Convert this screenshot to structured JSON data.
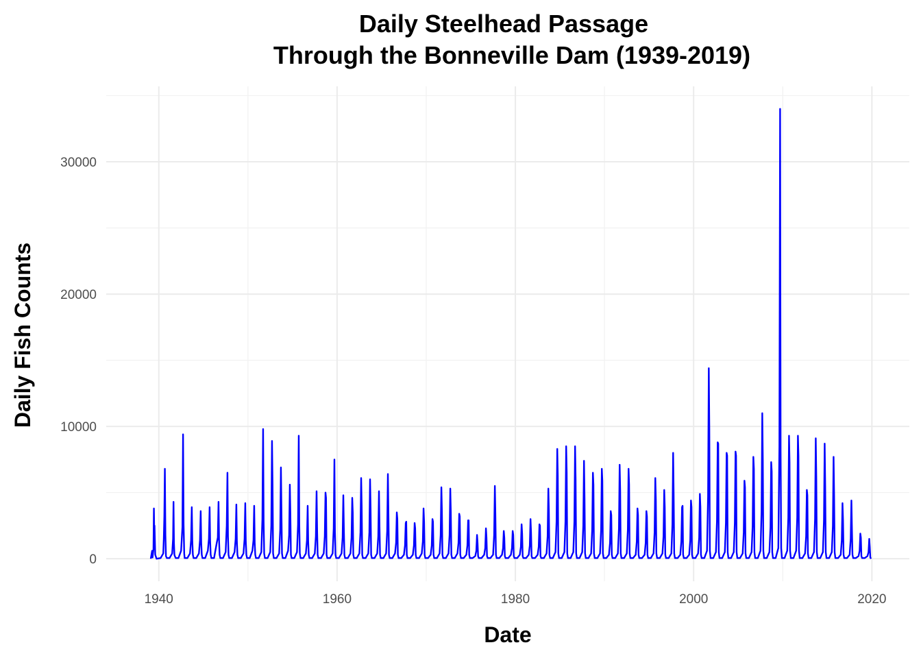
{
  "chart_data": {
    "type": "line",
    "title_line1": "Daily Steelhead Passage",
    "title_line2": "Through the Bonneville Dam (1939-2019)",
    "xlabel": "Date",
    "ylabel": "Daily Fish Counts",
    "xlim": [
      1934.1,
      2024.2
    ],
    "ylim": [
      -1700,
      35700
    ],
    "x_ticks": [
      "1940",
      "1960",
      "1980",
      "2000",
      "2020"
    ],
    "x_tick_values": [
      1940,
      1960,
      1980,
      2000,
      2020
    ],
    "y_ticks": [
      "0",
      "10000",
      "20000",
      "30000"
    ],
    "y_tick_values": [
      0,
      10000,
      20000,
      30000
    ],
    "grid": true,
    "line_color": "#0000ff",
    "series": [
      {
        "x": [
          1939.1,
          1939.25,
          1939.3,
          1939.4,
          1939.45,
          1939.5,
          1939.52,
          1939.6,
          1939.7,
          1939.75,
          1940.2,
          1940.5,
          1940.56,
          1940.62,
          1940.68,
          1940.74,
          1940.8,
          1940.9,
          1941.2,
          1941.5,
          1941.6,
          1941.65,
          1941.7,
          1941.75,
          1941.8,
          1941.9,
          1942.2,
          1942.5,
          1942.65,
          1942.72,
          1942.78,
          1942.85,
          1942.9,
          1943.2,
          1943.5,
          1943.62,
          1943.7,
          1943.76,
          1943.82,
          1943.9,
          1944.2,
          1944.5,
          1944.62,
          1944.7,
          1944.76,
          1944.82,
          1944.9,
          1945.2,
          1945.5,
          1945.62,
          1945.7,
          1945.76,
          1945.82,
          1945.9,
          1946.2,
          1946.5,
          1946.62,
          1946.7,
          1946.76,
          1946.82,
          1946.9,
          1947.2,
          1947.5,
          1947.62,
          1947.7,
          1947.76,
          1947.82,
          1947.9,
          1948.2,
          1948.5,
          1948.62,
          1948.7,
          1948.76,
          1948.82,
          1948.9,
          1949.2,
          1949.5,
          1949.62,
          1949.7,
          1949.76,
          1949.82,
          1949.9,
          1950.2,
          1950.5,
          1950.62,
          1950.7,
          1950.76,
          1950.82,
          1950.9,
          1951.2,
          1951.5,
          1951.62,
          1951.7,
          1951.76,
          1951.82,
          1951.9,
          1952.2,
          1952.5,
          1952.62,
          1952.7,
          1952.76,
          1952.82,
          1952.9,
          1953.2,
          1953.5,
          1953.62,
          1953.7,
          1953.76,
          1953.82,
          1953.9,
          1954.2,
          1954.5,
          1954.62,
          1954.7,
          1954.76,
          1954.82,
          1954.9,
          1955.2,
          1955.5,
          1955.62,
          1955.7,
          1955.76,
          1955.82,
          1955.9,
          1956.2,
          1956.5,
          1956.62,
          1956.7,
          1956.76,
          1956.82,
          1956.9,
          1957.2,
          1957.5,
          1957.62,
          1957.7,
          1957.76,
          1957.82,
          1957.9,
          1958.2,
          1958.5,
          1958.62,
          1958.7,
          1958.76,
          1958.82,
          1958.9,
          1959.2,
          1959.5,
          1959.62,
          1959.7,
          1959.76,
          1959.82,
          1959.9,
          1960.2,
          1960.5,
          1960.62,
          1960.7,
          1960.76,
          1960.82,
          1960.9,
          1961.2,
          1961.5,
          1961.62,
          1961.7,
          1961.76,
          1961.82,
          1961.9,
          1962.2,
          1962.5,
          1962.62,
          1962.7,
          1962.76,
          1962.82,
          1962.9,
          1963.2,
          1963.5,
          1963.62,
          1963.7,
          1963.76,
          1963.82,
          1963.9,
          1964.2,
          1964.5,
          1964.62,
          1964.7,
          1964.76,
          1964.82,
          1964.9,
          1965.2,
          1965.5,
          1965.62,
          1965.7,
          1965.76,
          1965.82,
          1965.9,
          1966.2,
          1966.5,
          1966.62,
          1966.7,
          1966.76,
          1966.82,
          1966.9,
          1967.2,
          1967.5,
          1967.62,
          1967.7,
          1967.76,
          1967.82,
          1967.9,
          1968.2,
          1968.5,
          1968.62,
          1968.7,
          1968.76,
          1968.82,
          1968.9,
          1969.2,
          1969.5,
          1969.62,
          1969.7,
          1969.76,
          1969.82,
          1969.9,
          1970.2,
          1970.5,
          1970.62,
          1970.7,
          1970.76,
          1970.82,
          1970.9,
          1971.2,
          1971.5,
          1971.62,
          1971.7,
          1971.76,
          1971.82,
          1971.9,
          1972.2,
          1972.5,
          1972.62,
          1972.7,
          1972.76,
          1972.82,
          1972.9,
          1973.2,
          1973.5,
          1973.62,
          1973.7,
          1973.76,
          1973.82,
          1973.9,
          1974.2,
          1974.5,
          1974.62,
          1974.7,
          1974.76,
          1974.82,
          1974.9,
          1975.2,
          1975.5,
          1975.62,
          1975.7,
          1975.76,
          1975.82,
          1975.9,
          1976.2,
          1976.5,
          1976.62,
          1976.7,
          1976.76,
          1976.82,
          1976.9,
          1977.2,
          1977.5,
          1977.62,
          1977.7,
          1977.76,
          1977.82,
          1977.9,
          1978.2,
          1978.5,
          1978.62,
          1978.7,
          1978.76,
          1978.82,
          1978.9,
          1979.2,
          1979.5,
          1979.62,
          1979.7,
          1979.76,
          1979.82,
          1979.9,
          1980.2,
          1980.5,
          1980.62,
          1980.7,
          1980.76,
          1980.82,
          1980.9,
          1981.2,
          1981.5,
          1981.62,
          1981.7,
          1981.76,
          1981.82,
          1981.9,
          1982.2,
          1982.5,
          1982.62,
          1982.7,
          1982.76,
          1982.82,
          1982.9,
          1983.2,
          1983.5,
          1983.62,
          1983.7,
          1983.76,
          1983.82,
          1983.9,
          1984.2,
          1984.5,
          1984.62,
          1984.7,
          1984.76,
          1984.82,
          1984.9,
          1985.2,
          1985.5,
          1985.62,
          1985.7,
          1985.76,
          1985.82,
          1985.9,
          1986.2,
          1986.5,
          1986.62,
          1986.7,
          1986.76,
          1986.82,
          1986.9,
          1987.2,
          1987.5,
          1987.62,
          1987.7,
          1987.76,
          1987.82,
          1987.9,
          1988.2,
          1988.5,
          1988.62,
          1988.7,
          1988.76,
          1988.82,
          1988.9,
          1989.2,
          1989.5,
          1989.62,
          1989.7,
          1989.76,
          1989.82,
          1989.9,
          1990.2,
          1990.5,
          1990.62,
          1990.7,
          1990.76,
          1990.82,
          1990.9,
          1991.2,
          1991.5,
          1991.62,
          1991.7,
          1991.76,
          1991.82,
          1991.9,
          1992.2,
          1992.5,
          1992.62,
          1992.7,
          1992.76,
          1992.82,
          1992.9,
          1993.2,
          1993.5,
          1993.62,
          1993.7,
          1993.76,
          1993.82,
          1993.9,
          1994.2,
          1994.5,
          1994.62,
          1994.7,
          1994.76,
          1994.82,
          1994.9,
          1995.2,
          1995.5,
          1995.62,
          1995.7,
          1995.76,
          1995.82,
          1995.9,
          1996.2,
          1996.5,
          1996.62,
          1996.7,
          1996.76,
          1996.82,
          1996.9,
          1997.2,
          1997.5,
          1997.62,
          1997.7,
          1997.76,
          1997.82,
          1997.9,
          1998.2,
          1998.5,
          1998.62,
          1998.7,
          1998.76,
          1998.82,
          1998.9,
          1999.2,
          1999.5,
          1999.62,
          1999.7,
          1999.76,
          1999.82,
          1999.9,
          2000.2,
          2000.5,
          2000.62,
          2000.7,
          2000.76,
          2000.82,
          2000.9,
          2001.2,
          2001.5,
          2001.62,
          2001.7,
          2001.76,
          2001.82,
          2001.9,
          2002.2,
          2002.5,
          2002.62,
          2002.7,
          2002.76,
          2002.82,
          2002.9,
          2003.2,
          2003.5,
          2003.62,
          2003.7,
          2003.76,
          2003.82,
          2003.9,
          2004.2,
          2004.5,
          2004.62,
          2004.7,
          2004.76,
          2004.82,
          2004.9,
          2005.2,
          2005.5,
          2005.62,
          2005.7,
          2005.76,
          2005.82,
          2005.9,
          2006.2,
          2006.5,
          2006.62,
          2006.7,
          2006.76,
          2006.82,
          2006.9,
          2007.2,
          2007.5,
          2007.62,
          2007.7,
          2007.76,
          2007.82,
          2007.9,
          2008.2,
          2008.5,
          2008.62,
          2008.7,
          2008.76,
          2008.82,
          2008.9,
          2009.2,
          2009.5,
          2009.62,
          2009.7,
          2009.76,
          2009.82,
          2009.9,
          2010.2,
          2010.5,
          2010.62,
          2010.7,
          2010.76,
          2010.82,
          2010.9,
          2011.2,
          2011.5,
          2011.62,
          2011.7,
          2011.76,
          2011.82,
          2011.9,
          2012.2,
          2012.5,
          2012.62,
          2012.7,
          2012.76,
          2012.82,
          2012.9,
          2013.2,
          2013.5,
          2013.62,
          2013.7,
          2013.76,
          2013.82,
          2013.9,
          2014.2,
          2014.5,
          2014.62,
          2014.7,
          2014.76,
          2014.82,
          2014.9,
          2015.2,
          2015.5,
          2015.62,
          2015.7,
          2015.76,
          2015.82,
          2015.9,
          2016.2,
          2016.5,
          2016.62,
          2016.7,
          2016.76,
          2016.82,
          2016.9,
          2017.2,
          2017.5,
          2017.62,
          2017.7,
          2017.76,
          2017.82,
          2017.9,
          2018.2,
          2018.5,
          2018.62,
          2018.7,
          2018.76,
          2018.82,
          2018.9,
          2019.2,
          2019.5,
          2019.62,
          2019.7,
          2019.76,
          2019.82,
          2019.9
        ],
        "y": [
          0,
          600,
          100,
          700,
          3800,
          1500,
          2500,
          300,
          100,
          0,
          50,
          400,
          1500,
          3200,
          6800,
          1800,
          200,
          50,
          50,
          400,
          1500,
          4300,
          1200,
          300,
          200,
          50,
          50,
          600,
          2400,
          9400,
          2600,
          400,
          50,
          50,
          400,
          1400,
          3900,
          1300,
          300,
          50,
          50,
          400,
          1400,
          3600,
          1200,
          300,
          50,
          50,
          600,
          1500,
          3900,
          1300,
          300,
          50,
          50,
          1200,
          1600,
          4300,
          1400,
          300,
          50,
          50,
          500,
          2500,
          6500,
          1700,
          300,
          50,
          50,
          500,
          1500,
          4100,
          1300,
          300,
          50,
          50,
          400,
          1500,
          4200,
          1300,
          300,
          50,
          50,
          600,
          1400,
          4000,
          1200,
          300,
          50,
          50,
          500,
          3000,
          9800,
          2800,
          400,
          50,
          50,
          500,
          2500,
          8900,
          5600,
          400,
          50,
          50,
          400,
          2200,
          6900,
          3500,
          400,
          50,
          50,
          600,
          1800,
          5600,
          3400,
          300,
          50,
          50,
          500,
          2600,
          9300,
          2600,
          400,
          50,
          50,
          400,
          1400,
          4000,
          1300,
          300,
          50,
          50,
          400,
          1700,
          5100,
          2200,
          300,
          50,
          50,
          400,
          1700,
          5000,
          4600,
          300,
          50,
          50,
          400,
          2300,
          7500,
          2000,
          300,
          50,
          50,
          400,
          1600,
          4800,
          2300,
          300,
          50,
          50,
          400,
          1600,
          4600,
          3500,
          300,
          50,
          50,
          400,
          2000,
          6100,
          4000,
          300,
          50,
          50,
          400,
          2000,
          6000,
          3800,
          300,
          50,
          50,
          400,
          1700,
          5100,
          2400,
          300,
          50,
          50,
          400,
          2100,
          6400,
          3400,
          300,
          50,
          50,
          400,
          1200,
          3500,
          3000,
          300,
          50,
          50,
          300,
          1000,
          2700,
          2800,
          300,
          50,
          50,
          300,
          1000,
          2700,
          2300,
          300,
          50,
          50,
          400,
          1300,
          3800,
          2800,
          300,
          50,
          50,
          300,
          1000,
          3000,
          2800,
          300,
          50,
          50,
          400,
          1800,
          5400,
          3600,
          300,
          50,
          50,
          400,
          1800,
          5300,
          3500,
          300,
          50,
          50,
          400,
          1200,
          3400,
          3200,
          300,
          50,
          50,
          300,
          1000,
          2900,
          2900,
          300,
          50,
          50,
          200,
          600,
          1800,
          1200,
          200,
          50,
          50,
          300,
          800,
          2300,
          1600,
          200,
          50,
          50,
          300,
          1800,
          5500,
          3300,
          300,
          50,
          50,
          300,
          800,
          2100,
          1600,
          200,
          50,
          50,
          300,
          800,
          2100,
          1800,
          200,
          50,
          50,
          300,
          900,
          2600,
          1900,
          200,
          50,
          50,
          300,
          1000,
          3000,
          2000,
          200,
          50,
          50,
          300,
          900,
          2600,
          2500,
          200,
          50,
          50,
          400,
          1700,
          5300,
          3600,
          300,
          50,
          50,
          500,
          2800,
          8300,
          6300,
          400,
          50,
          50,
          500,
          2800,
          8500,
          6500,
          400,
          50,
          50,
          500,
          2800,
          8500,
          6000,
          400,
          50,
          50,
          500,
          2500,
          7400,
          4600,
          400,
          50,
          50,
          400,
          2200,
          6500,
          5600,
          400,
          50,
          50,
          400,
          2200,
          6800,
          5900,
          400,
          50,
          50,
          300,
          1200,
          3600,
          3300,
          300,
          50,
          50,
          400,
          2300,
          7100,
          5200,
          400,
          50,
          50,
          400,
          2200,
          6800,
          5600,
          400,
          50,
          50,
          300,
          1300,
          3800,
          3300,
          300,
          50,
          50,
          300,
          1200,
          3600,
          3200,
          300,
          50,
          50,
          400,
          2000,
          6100,
          4500,
          400,
          50,
          50,
          400,
          1700,
          5200,
          3900,
          300,
          50,
          50,
          400,
          2600,
          8000,
          4800,
          400,
          50,
          50,
          300,
          1300,
          3900,
          4000,
          300,
          50,
          50,
          300,
          1400,
          4400,
          3900,
          300,
          50,
          50,
          400,
          1600,
          4900,
          3900,
          300,
          50,
          50,
          600,
          4700,
          14400,
          9800,
          600,
          50,
          50,
          500,
          2900,
          8800,
          8700,
          500,
          50,
          50,
          500,
          2700,
          8000,
          7800,
          500,
          50,
          50,
          500,
          2700,
          8100,
          7800,
          500,
          50,
          50,
          400,
          2000,
          5900,
          5400,
          400,
          50,
          50,
          500,
          2500,
          7700,
          6800,
          500,
          50,
          50,
          600,
          3600,
          11000,
          7500,
          600,
          50,
          50,
          500,
          2400,
          7300,
          6600,
          500,
          50,
          50,
          800,
          8500,
          34000,
          8100,
          800,
          50,
          50,
          600,
          3100,
          9300,
          7300,
          600,
          50,
          50,
          600,
          3100,
          9300,
          7800,
          600,
          50,
          50,
          400,
          1700,
          5200,
          4800,
          400,
          50,
          50,
          500,
          3000,
          9100,
          6200,
          500,
          50,
          50,
          500,
          2900,
          8700,
          5500,
          500,
          50,
          50,
          500,
          2500,
          7700,
          4800,
          500,
          50,
          50,
          300,
          1400,
          4200,
          2900,
          300,
          50,
          50,
          300,
          1500,
          4400,
          2200,
          300,
          50,
          50,
          200,
          600,
          1900,
          1600,
          200,
          50,
          50,
          200,
          500,
          1500,
          900,
          100,
          0
        ]
      }
    ]
  }
}
